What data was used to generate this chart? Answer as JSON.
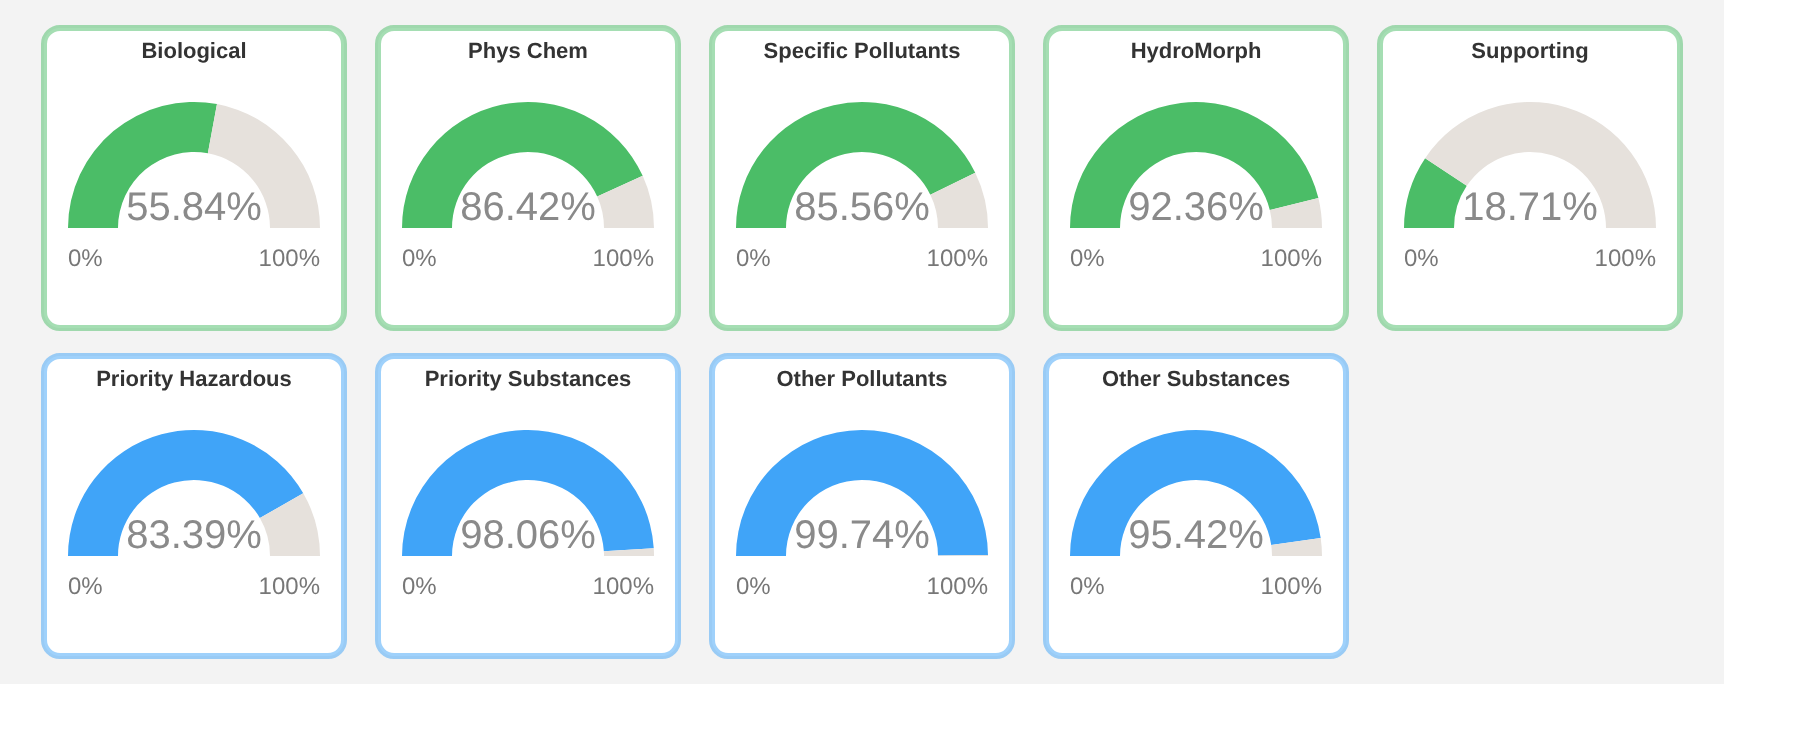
{
  "chart_data": [
    {
      "type": "donut",
      "title": "Biological",
      "categories": [
        null,
        null
      ],
      "values": [
        55.84,
        44.16
      ],
      "colors": [
        "#4bbd67",
        "#e6e1dc"
      ],
      "annotations": [
        "55.84%",
        "0%",
        "100%"
      ]
    },
    {
      "type": "donut",
      "title": "Phys Chem",
      "categories": [
        null,
        null
      ],
      "values": [
        86.42,
        13.58
      ],
      "colors": [
        "#4bbd67",
        "#e6e1dc"
      ],
      "annotations": [
        "86.42%",
        "0%",
        "100%"
      ]
    },
    {
      "type": "donut",
      "title": "Specific Pollutants",
      "categories": [
        null,
        null
      ],
      "values": [
        85.56,
        14.44
      ],
      "colors": [
        "#4bbd67",
        "#e6e1dc"
      ],
      "annotations": [
        "85.56%",
        "0%",
        "100%"
      ]
    },
    {
      "type": "donut",
      "title": "HydroMorph",
      "categories": [
        null,
        null
      ],
      "values": [
        92.36,
        7.64
      ],
      "colors": [
        "#4bbd67",
        "#e6e1dc"
      ],
      "annotations": [
        "92.36%",
        "0%",
        "100%"
      ]
    },
    {
      "type": "donut",
      "title": "Supporting",
      "categories": [
        null,
        null
      ],
      "values": [
        18.71,
        81.29
      ],
      "colors": [
        "#4bbd67",
        "#e6e1dc"
      ],
      "annotations": [
        "18.71%",
        "0%",
        "100%"
      ]
    },
    {
      "type": "donut",
      "title": "Priority Hazardous",
      "categories": [
        null,
        null
      ],
      "values": [
        83.39,
        16.61
      ],
      "colors": [
        "#40a4f8",
        "#e6e1dc"
      ],
      "annotations": [
        "83.39%",
        "0%",
        "100%"
      ]
    },
    {
      "type": "donut",
      "title": "Priority Substances",
      "categories": [
        null,
        null
      ],
      "values": [
        98.06,
        1.94
      ],
      "colors": [
        "#40a4f8",
        "#e6e1dc"
      ],
      "annotations": [
        "98.06%",
        "0%",
        "100%"
      ]
    },
    {
      "type": "donut",
      "title": "Other Pollutants",
      "categories": [
        null,
        null
      ],
      "values": [
        99.74,
        0.26
      ],
      "colors": [
        "#40a4f8",
        "#e6e1dc"
      ],
      "annotations": [
        "99.74%",
        "0%",
        "100%"
      ]
    },
    {
      "type": "donut",
      "title": "Other Substances",
      "categories": [
        null,
        null
      ],
      "values": [
        95.42,
        4.58
      ],
      "colors": [
        "#40a4f8",
        "#e6e1dc"
      ],
      "annotations": [
        "95.42%",
        "0%",
        "100%"
      ]
    }
  ]
}
